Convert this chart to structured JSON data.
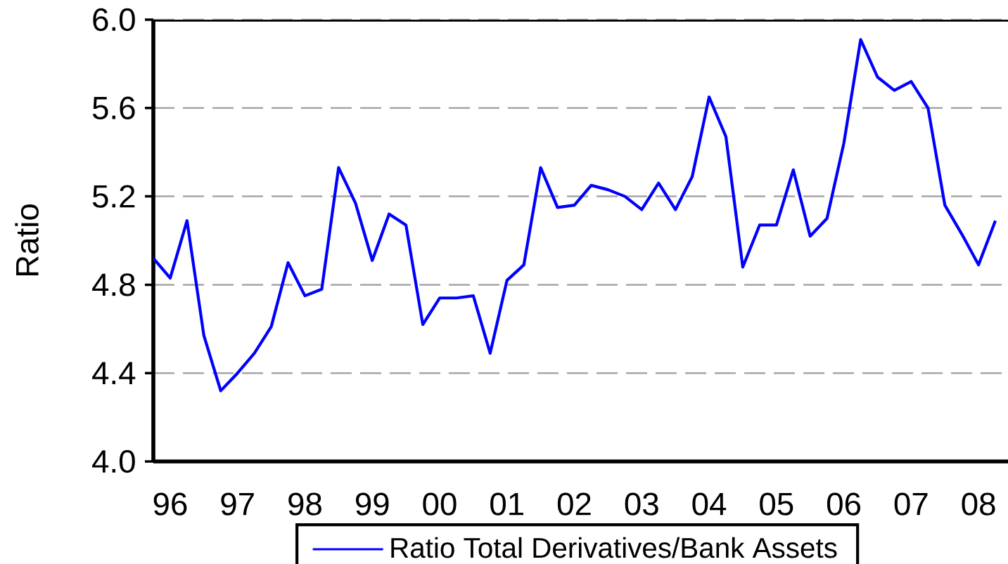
{
  "chart_data": {
    "type": "line",
    "ylabel": "Ratio",
    "categories": [
      null,
      "96",
      null,
      null,
      null,
      "97",
      null,
      null,
      null,
      "98",
      null,
      null,
      null,
      "99",
      null,
      null,
      null,
      "00",
      null,
      null,
      null,
      "01",
      null,
      null,
      null,
      "02",
      null,
      null,
      null,
      "03",
      null,
      null,
      null,
      "04",
      null,
      null,
      null,
      "05",
      null,
      null,
      null,
      "06",
      null,
      null,
      null,
      "07",
      null,
      null,
      null,
      "08",
      null
    ],
    "series": [
      {
        "name": "Ratio Total Derivatives/Bank Assets",
        "color": "#0000ff",
        "values": [
          4.92,
          4.83,
          5.09,
          4.57,
          4.32,
          4.4,
          4.49,
          4.61,
          4.9,
          4.75,
          4.78,
          5.33,
          5.17,
          4.91,
          5.12,
          5.07,
          4.62,
          4.74,
          4.74,
          4.75,
          4.49,
          4.82,
          4.89,
          5.33,
          5.15,
          5.16,
          5.25,
          5.23,
          5.2,
          5.14,
          5.26,
          5.14,
          5.29,
          5.65,
          5.47,
          4.88,
          5.07,
          5.07,
          5.32,
          5.02,
          5.1,
          5.44,
          5.91,
          5.74,
          5.68,
          5.72,
          5.6,
          5.16,
          5.03,
          4.89,
          5.09
        ]
      }
    ],
    "ylim": [
      4.0,
      6.0
    ],
    "yticks": [
      {
        "value": 4.0,
        "label": "4.0"
      },
      {
        "value": 4.4,
        "label": "4.4"
      },
      {
        "value": 4.8,
        "label": "4.8"
      },
      {
        "value": 5.2,
        "label": "5.2"
      },
      {
        "value": 5.6,
        "label": "5.6"
      },
      {
        "value": 6.0,
        "label": "6.0"
      }
    ],
    "grid": "y",
    "legend": "bottom",
    "marker": "none",
    "line_style": "solid"
  }
}
